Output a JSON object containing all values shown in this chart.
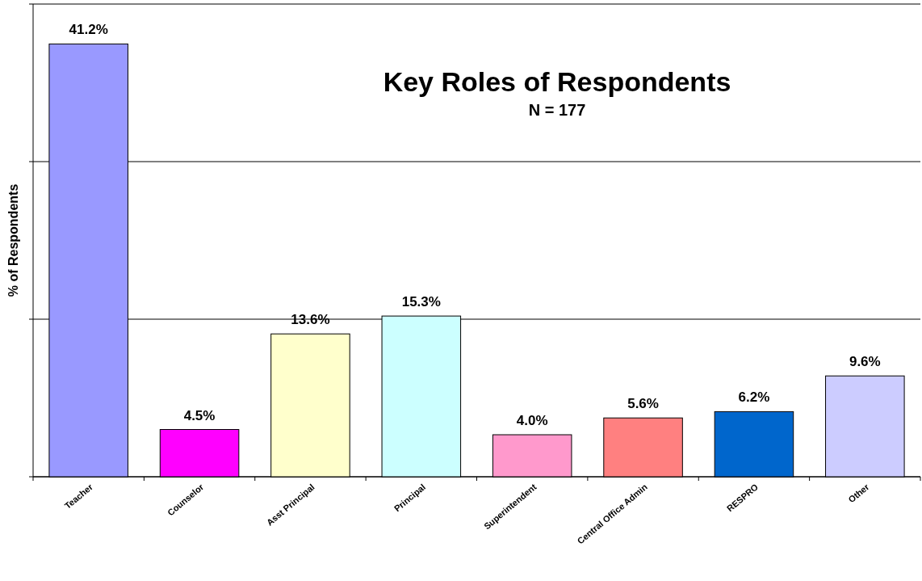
{
  "chart_data": {
    "type": "bar",
    "title": "Key Roles of Respondents",
    "subtitle": "N = 177",
    "ylabel": "% of Respondents",
    "categories": [
      "Teacher",
      "Counselor",
      "Asst Principal",
      "Principal",
      "Superintendent",
      "Central Office Admin",
      "RESPRO",
      "Other"
    ],
    "values": [
      41.2,
      4.5,
      13.6,
      15.3,
      4.0,
      5.6,
      6.2,
      9.6
    ],
    "value_labels": [
      "41.2%",
      "4.5%",
      "13.6%",
      "15.3%",
      "4.0%",
      "5.6%",
      "6.2%",
      "9.6%"
    ],
    "colors": [
      "#9999ff",
      "#ff00ff",
      "#ffffcc",
      "#ccffff",
      "#ff99cc",
      "#ff8080",
      "#0066cc",
      "#ccccff"
    ],
    "ylim": [
      0,
      45
    ],
    "yticks": [
      {
        "value": 0,
        "label": null
      },
      {
        "value": 15,
        "label": null
      },
      {
        "value": 30,
        "label": null
      },
      {
        "value": 45,
        "label": null
      }
    ],
    "grid": "y",
    "tick_labels": "x"
  }
}
